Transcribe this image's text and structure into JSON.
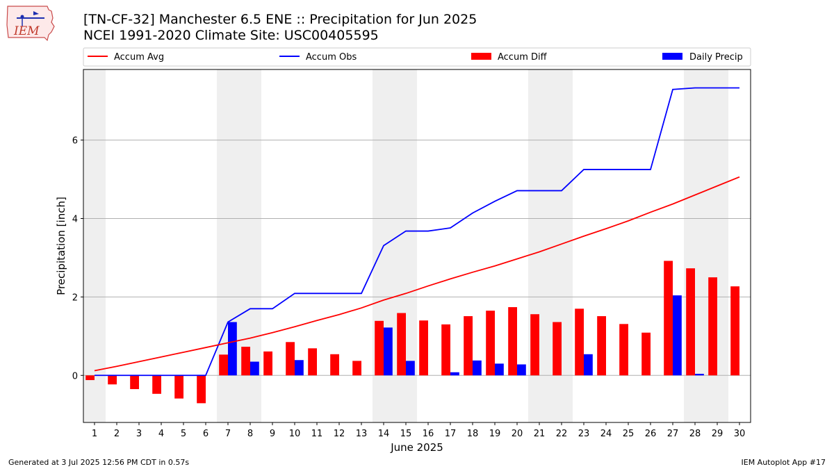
{
  "header": {
    "logo_text": "IEM",
    "title_line1": "[TN-CF-32] Manchester 6.5 ENE :: Precipitation for Jun 2025",
    "title_line2": "NCEI 1991-2020 Climate Site: USC00405595"
  },
  "footer": {
    "generated": "Generated at 3 Jul 2025 12:56 PM CDT in 0.57s",
    "app": "IEM Autoplot App #17"
  },
  "colors": {
    "accum_avg": "#ff0000",
    "accum_obs": "#0000ff",
    "accum_diff": "#ff0000",
    "daily_precip": "#0000ff",
    "weekend_shade": "#efefef"
  },
  "chart_data": {
    "type": "bar",
    "xlabel": "June 2025",
    "ylabel": "Precipitation [inch]",
    "xlim": [
      0.5,
      30.5
    ],
    "ylim": [
      -1.2,
      7.8
    ],
    "yticks": [
      0,
      2,
      4,
      6
    ],
    "grid": "horizontal",
    "legend_position": "top",
    "days": [
      1,
      2,
      3,
      4,
      5,
      6,
      7,
      8,
      9,
      10,
      11,
      12,
      13,
      14,
      15,
      16,
      17,
      18,
      19,
      20,
      21,
      22,
      23,
      24,
      25,
      26,
      27,
      28,
      29,
      30
    ],
    "shaded_days": [
      1,
      7,
      8,
      14,
      15,
      21,
      22,
      28,
      29
    ],
    "series": [
      {
        "name": "Accum Avg",
        "type": "line",
        "values": [
          0.12,
          0.23,
          0.35,
          0.47,
          0.59,
          0.71,
          0.83,
          0.95,
          1.09,
          1.24,
          1.4,
          1.55,
          1.72,
          1.92,
          2.09,
          2.28,
          2.46,
          2.63,
          2.79,
          2.97,
          3.15,
          3.35,
          3.55,
          3.74,
          3.94,
          4.16,
          4.37,
          4.6,
          4.83,
          5.06
        ]
      },
      {
        "name": "Accum Obs",
        "type": "line",
        "values": [
          0,
          0,
          0,
          0,
          0,
          0,
          1.36,
          1.7,
          1.7,
          2.09,
          2.09,
          2.09,
          2.09,
          3.31,
          3.68,
          3.68,
          3.76,
          4.14,
          4.44,
          4.71,
          4.71,
          4.71,
          5.25,
          5.25,
          5.25,
          5.25,
          7.29,
          7.33,
          7.33,
          7.33
        ]
      },
      {
        "name": "Accum Diff",
        "type": "bar",
        "values": [
          -0.12,
          -0.23,
          -0.35,
          -0.47,
          -0.59,
          -0.71,
          0.53,
          0.73,
          0.61,
          0.85,
          0.69,
          0.54,
          0.37,
          1.39,
          1.59,
          1.4,
          1.3,
          1.51,
          1.65,
          1.74,
          1.56,
          1.36,
          1.7,
          1.51,
          1.31,
          1.09,
          2.92,
          2.73,
          2.5,
          2.27
        ]
      },
      {
        "name": "Daily Precip",
        "type": "bar",
        "values": [
          0,
          0,
          0,
          0,
          0,
          0,
          1.36,
          0.35,
          0,
          0.39,
          0,
          0,
          0,
          1.22,
          0.37,
          0,
          0.08,
          0.38,
          0.3,
          0.28,
          0,
          0,
          0.54,
          0,
          0,
          0,
          2.04,
          0.04,
          0,
          0
        ]
      }
    ]
  }
}
